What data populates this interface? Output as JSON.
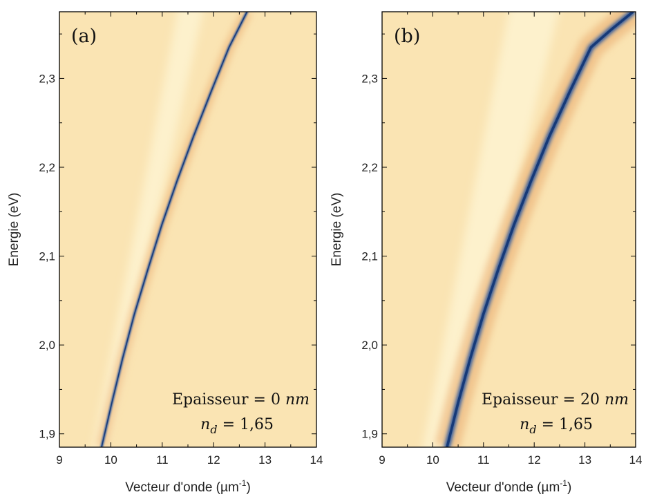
{
  "chart_data": [
    {
      "type": "heatmap",
      "panel_label": "(a)",
      "xlabel": "Vecteur d'onde (µm",
      "xlabel_sup": "-1",
      "xlabel_end": ")",
      "ylabel": "Energie (eV)",
      "xlim": [
        9,
        14
      ],
      "ylim": [
        1.885,
        2.375
      ],
      "xticks": [
        "9",
        "10",
        "11",
        "12",
        "13",
        "14"
      ],
      "yticks": [
        "1,9",
        "2,0",
        "2,1",
        "2,2",
        "2,3"
      ],
      "annotation": {
        "line1_label": "Epaisseur",
        "line1_eq": " = ",
        "line1_value": "0",
        "line1_unit": " nm",
        "line2_label": "n",
        "line2_sub": "d",
        "line2_eq": "  = ",
        "line2_value": "1,65"
      },
      "dispersion_curve": {
        "x": [
          9.82,
          10.02,
          10.23,
          10.46,
          10.72,
          10.99,
          11.29,
          11.61,
          11.95,
          12.3,
          12.65
        ],
        "y": [
          1.885,
          1.935,
          1.985,
          2.035,
          2.085,
          2.135,
          2.185,
          2.235,
          2.285,
          2.335,
          2.375
        ],
        "linewidth_um": 0.045
      },
      "light_band": {
        "x_at_ymin": [
          9.6,
          9.85
        ],
        "x_at_ymax": [
          11.35,
          11.85
        ]
      },
      "colors": {
        "background": "#fae4b3",
        "band": "#fdf1cc",
        "curve": "#1d4fa0",
        "halo": "#e9a96b"
      }
    },
    {
      "type": "heatmap",
      "panel_label": "(b)",
      "xlabel": "Vecteur d'onde (µm",
      "xlabel_sup": "-1",
      "xlabel_end": ")",
      "ylabel": "Energie (eV)",
      "xlim": [
        9,
        14
      ],
      "ylim": [
        1.885,
        2.375
      ],
      "xticks": [
        "9",
        "10",
        "11",
        "12",
        "13",
        "14"
      ],
      "yticks": [
        "1,9",
        "2,0",
        "2,1",
        "2,2",
        "2,3"
      ],
      "annotation": {
        "line1_label": "Epaisseur",
        "line1_eq": " = ",
        "line1_value": "20",
        "line1_unit": " nm",
        "line2_label": "n",
        "line2_sub": "d",
        "line2_eq": "  = ",
        "line2_value": "1,65"
      },
      "dispersion_curve": {
        "x": [
          10.28,
          10.5,
          10.74,
          11.0,
          11.29,
          11.6,
          11.94,
          12.3,
          12.7,
          13.12,
          13.52,
          13.95
        ],
        "y": [
          1.885,
          1.935,
          1.985,
          2.035,
          2.085,
          2.135,
          2.185,
          2.235,
          2.285,
          2.335,
          2.355,
          2.375
        ],
        "linewidth_um": 0.11
      },
      "light_band": {
        "x_at_ymin": [
          9.75,
          10.3
        ],
        "x_at_ymax": [
          11.55,
          12.55
        ]
      },
      "colors": {
        "background": "#fae4b3",
        "band": "#fdf1cc",
        "curve": "#1d4fa0",
        "halo": "#e9a96b"
      }
    }
  ]
}
